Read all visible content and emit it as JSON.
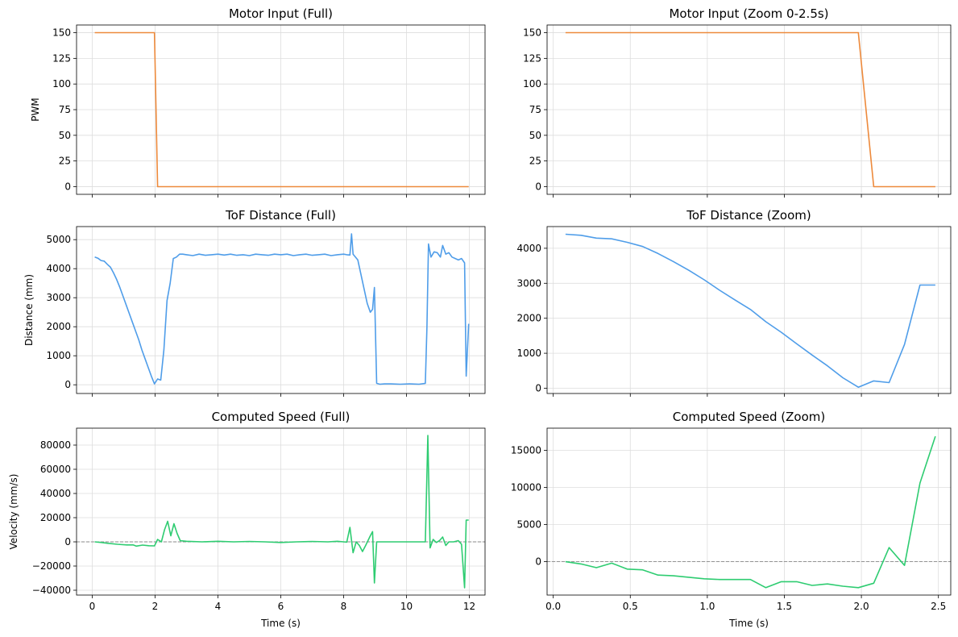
{
  "figure": {
    "background": "#ffffff"
  },
  "chart_data": [
    {
      "id": "motor_full",
      "type": "line",
      "title": "Motor Input (Full)",
      "xlabel": "",
      "ylabel": "PWM",
      "xlim": [
        -0.5,
        12.5
      ],
      "ylim": [
        -7.5,
        157.5
      ],
      "xticks": [
        0,
        2,
        4,
        6,
        8,
        10,
        12
      ],
      "xtick_labels_shown": false,
      "yticks": [
        0,
        25,
        50,
        75,
        100,
        125,
        150
      ],
      "ytick_labels": [
        "0",
        "25",
        "50",
        "75",
        "100",
        "125",
        "150"
      ],
      "grid": true,
      "zero_line": false,
      "series": [
        {
          "name": "PWM",
          "color": "#ed8a3c",
          "x": [
            0.08,
            1.98,
            2.08,
            11.98
          ],
          "y": [
            150,
            150,
            0,
            0
          ]
        }
      ]
    },
    {
      "id": "motor_zoom",
      "type": "line",
      "title": "Motor Input (Zoom 0-2.5s)",
      "xlabel": "",
      "ylabel": "",
      "xlim": [
        -0.04,
        2.58
      ],
      "ylim": [
        -7.5,
        157.5
      ],
      "xticks": [
        0.0,
        0.5,
        1.0,
        1.5,
        2.0,
        2.5
      ],
      "xtick_labels_shown": false,
      "yticks": [
        0,
        25,
        50,
        75,
        100,
        125,
        150
      ],
      "ytick_labels": [
        "0",
        "25",
        "50",
        "75",
        "100",
        "125",
        "150"
      ],
      "grid": true,
      "zero_line": false,
      "series": [
        {
          "name": "PWM",
          "color": "#ed8a3c",
          "x": [
            0.08,
            1.98,
            2.08,
            2.48
          ],
          "y": [
            150,
            150,
            0,
            0
          ]
        }
      ]
    },
    {
      "id": "tof_full",
      "type": "line",
      "title": "ToF Distance (Full)",
      "xlabel": "",
      "ylabel": "Distance (mm)",
      "xlim": [
        -0.5,
        12.5
      ],
      "ylim": [
        -300,
        5450
      ],
      "xticks": [
        0,
        2,
        4,
        6,
        8,
        10,
        12
      ],
      "xtick_labels_shown": false,
      "yticks": [
        0,
        1000,
        2000,
        3000,
        4000,
        5000
      ],
      "ytick_labels": [
        "0",
        "1000",
        "2000",
        "3000",
        "4000",
        "5000"
      ],
      "grid": true,
      "zero_line": false,
      "series": [
        {
          "name": "Distance",
          "color": "#4f9de9",
          "x": [
            0.08,
            0.18,
            0.28,
            0.38,
            0.48,
            0.58,
            0.68,
            0.78,
            0.88,
            0.98,
            1.08,
            1.18,
            1.28,
            1.38,
            1.48,
            1.58,
            1.68,
            1.78,
            1.88,
            1.98,
            2.08,
            2.18,
            2.28,
            2.38,
            2.48,
            2.58,
            2.68,
            2.78,
            2.88,
            3.0,
            3.2,
            3.4,
            3.6,
            3.8,
            4.0,
            4.2,
            4.4,
            4.6,
            4.8,
            5.0,
            5.2,
            5.4,
            5.6,
            5.8,
            6.0,
            6.2,
            6.4,
            6.6,
            6.8,
            7.0,
            7.2,
            7.4,
            7.6,
            7.8,
            8.0,
            8.1,
            8.2,
            8.25,
            8.3,
            8.45,
            8.55,
            8.65,
            8.75,
            8.85,
            8.92,
            8.98,
            9.05,
            9.15,
            9.3,
            9.5,
            9.8,
            10.1,
            10.4,
            10.6,
            10.65,
            10.7,
            10.78,
            10.88,
            10.98,
            11.08,
            11.15,
            11.25,
            11.35,
            11.45,
            11.55,
            11.65,
            11.75,
            11.85,
            11.9,
            11.98
          ],
          "y": [
            4400,
            4360,
            4280,
            4260,
            4150,
            4050,
            3850,
            3620,
            3350,
            3050,
            2750,
            2450,
            2150,
            1850,
            1550,
            1200,
            900,
            600,
            300,
            30,
            200,
            160,
            1200,
            2900,
            3500,
            4350,
            4400,
            4500,
            4500,
            4480,
            4450,
            4500,
            4460,
            4480,
            4500,
            4470,
            4500,
            4460,
            4480,
            4450,
            4500,
            4480,
            4460,
            4500,
            4480,
            4500,
            4450,
            4480,
            4500,
            4460,
            4480,
            4500,
            4450,
            4480,
            4500,
            4480,
            4470,
            5200,
            4500,
            4300,
            3800,
            3300,
            2800,
            2500,
            2600,
            3350,
            50,
            20,
            30,
            30,
            20,
            30,
            20,
            50,
            2000,
            4850,
            4400,
            4580,
            4550,
            4400,
            4800,
            4500,
            4550,
            4400,
            4350,
            4300,
            4350,
            4200,
            300,
            2100
          ]
        }
      ]
    },
    {
      "id": "tof_zoom",
      "type": "line",
      "title": "ToF Distance (Zoom)",
      "xlabel": "",
      "ylabel": "",
      "xlim": [
        -0.04,
        2.58
      ],
      "ylim": [
        -150,
        4620
      ],
      "xticks": [
        0.0,
        0.5,
        1.0,
        1.5,
        2.0,
        2.5
      ],
      "xtick_labels_shown": false,
      "yticks": [
        0,
        1000,
        2000,
        3000,
        4000
      ],
      "ytick_labels": [
        "0",
        "1000",
        "2000",
        "3000",
        "4000"
      ],
      "grid": true,
      "zero_line": false,
      "series": [
        {
          "name": "Distance",
          "color": "#4f9de9",
          "x": [
            0.08,
            0.18,
            0.28,
            0.38,
            0.48,
            0.58,
            0.68,
            0.78,
            0.88,
            0.98,
            1.08,
            1.18,
            1.28,
            1.38,
            1.48,
            1.58,
            1.68,
            1.78,
            1.88,
            1.98,
            2.08,
            2.18,
            2.28,
            2.38,
            2.48
          ],
          "y": [
            4400,
            4370,
            4290,
            4270,
            4170,
            4050,
            3850,
            3620,
            3370,
            3100,
            2800,
            2520,
            2250,
            1900,
            1600,
            1270,
            950,
            640,
            300,
            30,
            210,
            160,
            1250,
            2950,
            2950
          ]
        }
      ]
    },
    {
      "id": "speed_full",
      "type": "line",
      "title": "Computed Speed (Full)",
      "xlabel": "Time (s)",
      "ylabel": "Velocity (mm/s)",
      "xlim": [
        -0.5,
        12.5
      ],
      "ylim": [
        -44000,
        94000
      ],
      "xticks": [
        0,
        2,
        4,
        6,
        8,
        10,
        12
      ],
      "xtick_labels_shown": true,
      "xtick_labels": [
        "0",
        "2",
        "4",
        "6",
        "8",
        "10",
        "12"
      ],
      "yticks": [
        -40000,
        -20000,
        0,
        20000,
        40000,
        60000,
        80000
      ],
      "ytick_labels": [
        "−40000",
        "−20000",
        "0",
        "20000",
        "40000",
        "60000",
        "80000"
      ],
      "grid": true,
      "zero_line": true,
      "series": [
        {
          "name": "Velocity",
          "color": "#2ecc71",
          "x": [
            0.08,
            0.3,
            0.5,
            0.8,
            1.1,
            1.3,
            1.4,
            1.6,
            1.8,
            1.98,
            2.08,
            2.2,
            2.3,
            2.4,
            2.5,
            2.6,
            2.7,
            2.8,
            3.0,
            3.5,
            4.0,
            4.5,
            5.0,
            5.5,
            6.0,
            6.5,
            7.0,
            7.5,
            7.8,
            8.0,
            8.1,
            8.2,
            8.3,
            8.4,
            8.5,
            8.6,
            8.7,
            8.85,
            8.92,
            8.98,
            9.05,
            9.3,
            9.8,
            10.3,
            10.6,
            10.68,
            10.75,
            10.85,
            10.95,
            11.05,
            11.15,
            11.25,
            11.35,
            11.5,
            11.65,
            11.75,
            11.85,
            11.9,
            11.98
          ],
          "y": [
            0,
            -500,
            -1200,
            -2000,
            -2500,
            -2500,
            -3500,
            -2700,
            -3200,
            -3300,
            2000,
            0,
            10000,
            17000,
            5000,
            15000,
            7000,
            1000,
            500,
            0,
            500,
            0,
            300,
            0,
            -500,
            0,
            300,
            0,
            500,
            0,
            -200,
            12000,
            -9000,
            0,
            -3000,
            -8000,
            -3000,
            5000,
            8500,
            -34000,
            0,
            0,
            0,
            0,
            0,
            88000,
            -5000,
            2000,
            -500,
            1000,
            4000,
            -3000,
            0,
            0,
            1000,
            -2000,
            -38000,
            18000,
            18000
          ]
        }
      ]
    },
    {
      "id": "speed_zoom",
      "type": "line",
      "title": "Computed Speed (Zoom)",
      "xlabel": "Time (s)",
      "ylabel": "",
      "xlim": [
        -0.04,
        2.58
      ],
      "ylim": [
        -4500,
        18000
      ],
      "xticks": [
        0.0,
        0.5,
        1.0,
        1.5,
        2.0,
        2.5
      ],
      "xtick_labels_shown": true,
      "xtick_labels": [
        "0.0",
        "0.5",
        "1.0",
        "1.5",
        "2.0",
        "2.5"
      ],
      "yticks": [
        0,
        5000,
        10000,
        15000
      ],
      "ytick_labels": [
        "0",
        "5000",
        "10000",
        "15000"
      ],
      "grid": true,
      "zero_line": true,
      "series": [
        {
          "name": "Velocity",
          "color": "#2ecc71",
          "x": [
            0.08,
            0.18,
            0.28,
            0.38,
            0.48,
            0.58,
            0.68,
            0.78,
            0.88,
            0.98,
            1.08,
            1.18,
            1.28,
            1.38,
            1.48,
            1.58,
            1.68,
            1.78,
            1.88,
            1.98,
            2.08,
            2.18,
            2.28,
            2.38,
            2.48
          ],
          "y": [
            0,
            -300,
            -800,
            -200,
            -1000,
            -1100,
            -1800,
            -1900,
            -2100,
            -2300,
            -2400,
            -2400,
            -2400,
            -3500,
            -2700,
            -2700,
            -3200,
            -3000,
            -3300,
            -3500,
            -2900,
            1900,
            -500,
            10600,
            16900
          ]
        }
      ]
    }
  ]
}
